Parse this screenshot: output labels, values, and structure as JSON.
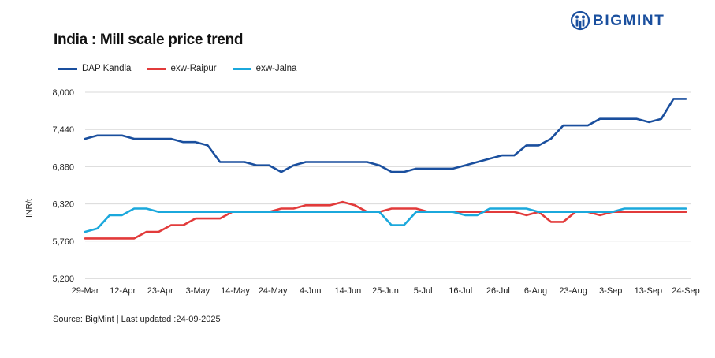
{
  "header": {
    "title": "India : Mill scale price trend",
    "brand_name": "BIGMINT"
  },
  "footer": {
    "source": "Source: BigMint | Last updated :24-09-2025"
  },
  "colors": {
    "DAP Kandla": "#1a4f9e",
    "exw-Raipur": "#e23b3b",
    "exw-Jalna": "#1ba8dc",
    "brand": "#1a4f9e",
    "grid": "#d9d9d9"
  },
  "chart_data": {
    "type": "line",
    "title": "India : Mill scale price trend",
    "xlabel": "",
    "ylabel": "INR/t",
    "ylim": [
      5200,
      8000
    ],
    "yticks": [
      "8,000",
      "7,440",
      "6,880",
      "6,320",
      "5,760",
      "5,200"
    ],
    "ytick_values": [
      8000,
      7440,
      6880,
      6320,
      5760,
      5200
    ],
    "grid": "horizontal",
    "legend_position": "top-left",
    "x_tick_labels": [
      "29-Mar",
      "12-Apr",
      "23-Apr",
      "3-May",
      "14-May",
      "24-May",
      "4-Jun",
      "14-Jun",
      "25-Jun",
      "5-Jul",
      "16-Jul",
      "26-Jul",
      "6-Aug",
      "23-Aug",
      "3-Sep",
      "13-Sep",
      "24-Sep"
    ],
    "series": [
      {
        "name": "DAP Kandla",
        "values": [
          7300,
          7350,
          7350,
          7350,
          7300,
          7300,
          7300,
          7300,
          7250,
          7250,
          7200,
          6950,
          6950,
          6950,
          6900,
          6900,
          6800,
          6900,
          6950,
          6950,
          6950,
          6950,
          6950,
          6950,
          6900,
          6800,
          6800,
          6850,
          6850,
          6850,
          6850,
          6900,
          6950,
          7000,
          7050,
          7050,
          7200,
          7200,
          7300,
          7500,
          7500,
          7500,
          7600,
          7600,
          7600,
          7600,
          7550,
          7600,
          7900,
          7900
        ]
      },
      {
        "name": "exw-Raipur",
        "values": [
          5800,
          5800,
          5800,
          5800,
          5800,
          5900,
          5900,
          6000,
          6000,
          6100,
          6100,
          6100,
          6200,
          6200,
          6200,
          6200,
          6250,
          6250,
          6300,
          6300,
          6300,
          6350,
          6300,
          6200,
          6200,
          6250,
          6250,
          6250,
          6200,
          6200,
          6200,
          6200,
          6200,
          6200,
          6200,
          6200,
          6150,
          6200,
          6050,
          6050,
          6200,
          6200,
          6150,
          6200,
          6200,
          6200,
          6200,
          6200,
          6200,
          6200
        ]
      },
      {
        "name": "exw-Jalna",
        "values": [
          5900,
          5950,
          6150,
          6150,
          6250,
          6250,
          6200,
          6200,
          6200,
          6200,
          6200,
          6200,
          6200,
          6200,
          6200,
          6200,
          6200,
          6200,
          6200,
          6200,
          6200,
          6200,
          6200,
          6200,
          6200,
          6000,
          6000,
          6200,
          6200,
          6200,
          6200,
          6150,
          6150,
          6250,
          6250,
          6250,
          6250,
          6200,
          6200,
          6200,
          6200,
          6200,
          6200,
          6200,
          6250,
          6250,
          6250,
          6250,
          6250,
          6250
        ]
      }
    ]
  }
}
